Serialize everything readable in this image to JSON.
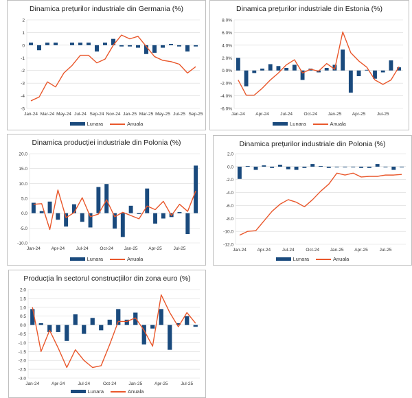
{
  "colors": {
    "lunara": "#1a4a7d",
    "anuala": "#e9572b",
    "grid": "#d9d9d9"
  },
  "chart_data": [
    {
      "type": "bar+line",
      "title": "Dinamica prețurilor industriale din Germania (%)",
      "categories": [
        "Jan-24",
        "Feb-24",
        "Mar-24",
        "Apr-24",
        "May-24",
        "Jun-24",
        "Jul-24",
        "Aug-24",
        "Sep-24",
        "Oct-24",
        "Nov-24",
        "Dec-24",
        "Jan-25",
        "Feb-25",
        "Mar-25",
        "Apr-25",
        "May-25",
        "Jun-25",
        "Jul-25",
        "Aug-25",
        "Sep-25"
      ],
      "tick_every": 2,
      "ylim": [
        -5,
        2
      ],
      "ystep": 1,
      "decimals": 0,
      "suffix": "",
      "yticks": [
        "-5",
        "-4",
        "-3",
        "-2",
        "-1",
        "0",
        "1",
        "2"
      ],
      "series": [
        {
          "name": "Lunara",
          "type": "bar",
          "values": [
            0.2,
            -0.4,
            0.2,
            0.2,
            0,
            0.2,
            0.2,
            0.2,
            -0.5,
            0.2,
            0.5,
            -0.1,
            -0.1,
            -0.2,
            -0.7,
            -0.6,
            -0.2,
            0.1,
            -0.1,
            -0.5,
            -0.1
          ]
        },
        {
          "name": "Anuala",
          "type": "line",
          "values": [
            -4.4,
            -4.1,
            -2.9,
            -3.3,
            -2.2,
            -1.6,
            -0.8,
            -0.8,
            -1.4,
            -1.1,
            0.0,
            0.8,
            0.5,
            0.7,
            -0.1,
            -0.9,
            -1.2,
            -1.3,
            -1.5,
            -2.2,
            -1.7
          ]
        }
      ],
      "legend": "bottom"
    },
    {
      "type": "bar+line",
      "title": "Dinamica prețurilor industriale din Estonia (%)",
      "categories": [
        "Jan-24",
        "Feb-24",
        "Mar-24",
        "Apr-24",
        "May-24",
        "Jun-24",
        "Jul-24",
        "Aug-24",
        "Sep-24",
        "Oct-24",
        "Nov-24",
        "Dec-24",
        "Jan-25",
        "Feb-25",
        "Mar-25",
        "Apr-25",
        "May-25",
        "Jun-25",
        "Jul-25",
        "Aug-25",
        "Sep-25"
      ],
      "tick_every": 3,
      "ylim": [
        -6,
        8
      ],
      "ystep": 2,
      "decimals": 1,
      "suffix": "%",
      "yticks": [
        "-6.0%",
        "-4.0%",
        "-2.0%",
        "0.0%",
        "2.0%",
        "4.0%",
        "6.0%",
        "8.0%"
      ],
      "series": [
        {
          "name": "Lunara",
          "type": "bar",
          "values": [
            2.0,
            -2.5,
            -0.4,
            0.3,
            1.0,
            0.7,
            0.4,
            0.9,
            -1.5,
            0.3,
            -0.3,
            0.4,
            0.9,
            3.3,
            -3.5,
            -0.9,
            0.1,
            -1.3,
            -0.3,
            1.6,
            0.5
          ]
        },
        {
          "name": "Anuala",
          "type": "line",
          "values": [
            -1.5,
            -3.9,
            -3.9,
            -2.8,
            -1.5,
            -0.4,
            0.9,
            1.7,
            -0.4,
            0.2,
            -0.1,
            1.1,
            0.2,
            6.1,
            2.8,
            1.5,
            0.5,
            -1.5,
            -2.2,
            -1.5,
            0.6
          ]
        }
      ],
      "legend": "bottom"
    },
    {
      "type": "bar+line",
      "title": "Dinamica producției industriale din Polonia (%)",
      "categories": [
        "Jan-24",
        "Feb-24",
        "Mar-24",
        "Apr-24",
        "May-24",
        "Jun-24",
        "Jul-24",
        "Aug-24",
        "Sep-24",
        "Oct-24",
        "Nov-24",
        "Dec-24",
        "Jan-25",
        "Feb-25",
        "Mar-25",
        "Apr-25",
        "May-25",
        "Jun-25",
        "Jul-25",
        "Aug-25",
        "Sep-25"
      ],
      "tick_every": 3,
      "ylim": [
        -10,
        20
      ],
      "ystep": 5,
      "decimals": 1,
      "suffix": "",
      "yticks": [
        "-10.0",
        "-5.0",
        "0.0",
        "5.0",
        "10.0",
        "15.0",
        "20.0"
      ],
      "series": [
        {
          "name": "Lunara",
          "type": "bar",
          "values": [
            3.5,
            0.7,
            3.9,
            -2.2,
            -4.5,
            3.0,
            -2.9,
            -4.8,
            8.8,
            9.8,
            -5.2,
            -8.0,
            2.5,
            -0.3,
            8.3,
            -3.5,
            -1.8,
            -1.3,
            0.4,
            -7.0,
            16.0
          ]
        },
        {
          "name": "Anuala",
          "type": "line",
          "values": [
            3.0,
            3.2,
            -5.5,
            7.8,
            -1.5,
            0.2,
            5.2,
            -1.2,
            -0.3,
            4.5,
            -1.2,
            0.3,
            -0.8,
            -1.9,
            2.4,
            1.2,
            4.0,
            -0.8,
            3.0,
            0.6,
            7.5
          ]
        }
      ],
      "legend": "bottom"
    },
    {
      "type": "bar+line",
      "title": "Dinamica prețurilor industriale din Polonia (%)",
      "categories": [
        "Jan-24",
        "Feb-24",
        "Mar-24",
        "Apr-24",
        "May-24",
        "Jun-24",
        "Jul-24",
        "Aug-24",
        "Sep-24",
        "Oct-24",
        "Nov-24",
        "Dec-24",
        "Jan-25",
        "Feb-25",
        "Mar-25",
        "Apr-25",
        "May-25",
        "Jun-25",
        "Jul-25",
        "Aug-25",
        "Sep-25"
      ],
      "tick_every": 3,
      "ylim": [
        -12,
        2
      ],
      "ystep": 2,
      "decimals": 1,
      "suffix": "",
      "yticks": [
        "-12.0",
        "-10.0",
        "-8.0",
        "-6.0",
        "-4.0",
        "-2.0",
        "0.0",
        "2.0"
      ],
      "series": [
        {
          "name": "Lunara",
          "type": "bar",
          "values": [
            -1.9,
            0.1,
            -0.5,
            0.2,
            -0.2,
            0.3,
            -0.4,
            -0.5,
            -0.2,
            0.4,
            0.1,
            -0.2,
            -0.1,
            -0.1,
            -0.1,
            -0.2,
            -0.2,
            0.4,
            -0.1,
            -0.5,
            -0.1
          ]
        },
        {
          "name": "Anuala",
          "type": "line",
          "values": [
            -10.6,
            -10.0,
            -9.9,
            -8.4,
            -6.9,
            -5.8,
            -5.1,
            -5.5,
            -6.2,
            -5.1,
            -3.8,
            -2.7,
            -1.0,
            -1.3,
            -1.0,
            -1.6,
            -1.5,
            -1.5,
            -1.3,
            -1.3,
            -1.2
          ]
        }
      ],
      "legend": "bottom"
    },
    {
      "type": "bar+line",
      "title": "Producția în sectorul construcțiilor din zona euro (%)",
      "categories": [
        "Jan-24",
        "Feb-24",
        "Mar-24",
        "Apr-24",
        "May-24",
        "Jun-24",
        "Jul-24",
        "Aug-24",
        "Sep-24",
        "Oct-24",
        "Nov-24",
        "Dec-24",
        "Jan-25",
        "Feb-25",
        "Mar-25",
        "Apr-25",
        "May-25",
        "Jun-25",
        "Jul-25",
        "Aug-25"
      ],
      "tick_every": 3,
      "ylim": [
        -3,
        2
      ],
      "ystep": 0.5,
      "decimals": 1,
      "suffix": "",
      "yticks": [
        "-3.0",
        "-2.5",
        "-2.0",
        "-1.5",
        "-1.0",
        "-0.5",
        "0.0",
        "0.5",
        "1.0",
        "1.5",
        "2.0"
      ],
      "series": [
        {
          "name": "Lunara",
          "type": "bar",
          "values": [
            0.9,
            0.1,
            -0.4,
            -0.4,
            -0.9,
            0.6,
            -0.5,
            0.4,
            -0.3,
            0.3,
            0.9,
            0.3,
            0.7,
            -1.1,
            -0.2,
            0.9,
            -1.4,
            0.1,
            0.5,
            -0.1
          ]
        },
        {
          "name": "Anuala",
          "type": "line",
          "values": [
            1.0,
            -1.5,
            -0.3,
            -1.3,
            -2.4,
            -1.4,
            -2.0,
            -2.4,
            -2.3,
            -1.1,
            0.2,
            0.2,
            0.4,
            -0.3,
            -1.2,
            1.7,
            0.7,
            -0.1,
            0.7,
            0.1
          ]
        }
      ],
      "legend": "bottom"
    }
  ]
}
